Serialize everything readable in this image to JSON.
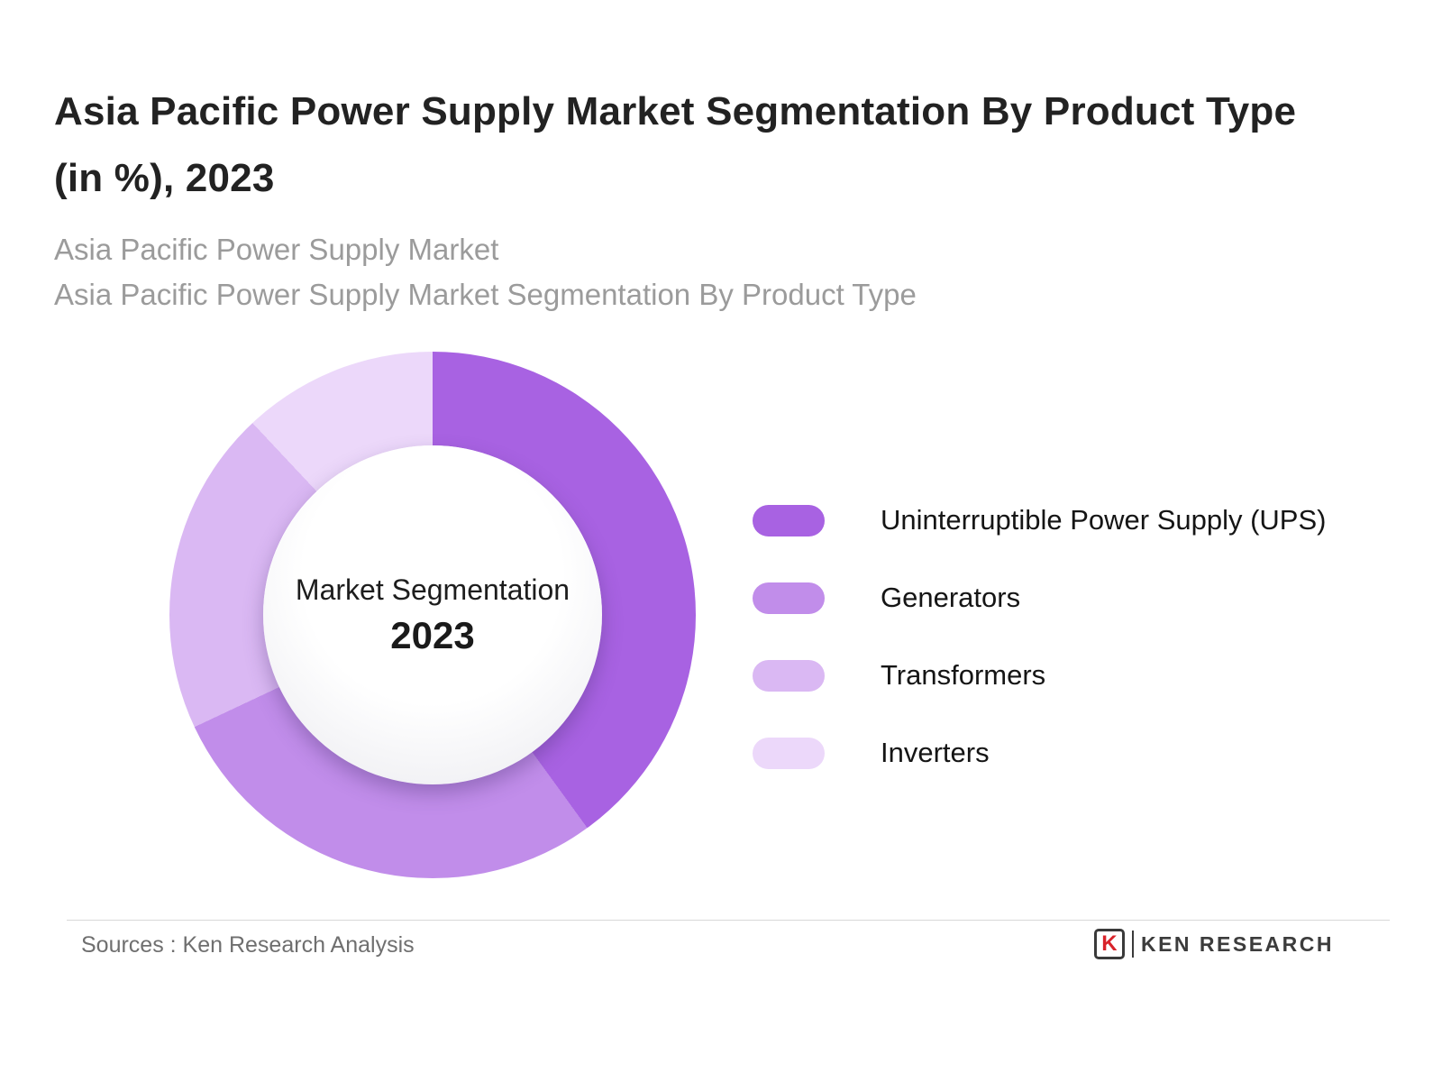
{
  "header": {
    "title": "Asia Pacific Power Supply Market Segmentation By Product Type (in %), 2023",
    "subtitle1": "Asia Pacific Power Supply Market",
    "subtitle2": "Asia Pacific Power Supply Market Segmentation By Product Type"
  },
  "chart_data": {
    "type": "pie",
    "donut": true,
    "title": "Asia Pacific Power Supply Market Segmentation By Product Type (in %), 2023",
    "center_label": "Market Segmentation",
    "center_year": "2023",
    "categories": [
      "Uninterruptible Power Supply (UPS)",
      "Generators",
      "Transformers",
      "Inverters"
    ],
    "values": [
      40,
      28,
      20,
      12
    ],
    "colors": [
      "#a862e2",
      "#c18dea",
      "#dab8f3",
      "#ecd8fa"
    ],
    "start_angle_deg": 0,
    "direction": "clockwise",
    "legend_position": "right"
  },
  "footer": {
    "source": "Sources : Ken Research Analysis",
    "logo_letter": "K",
    "logo_text": "KEN RESEARCH"
  }
}
